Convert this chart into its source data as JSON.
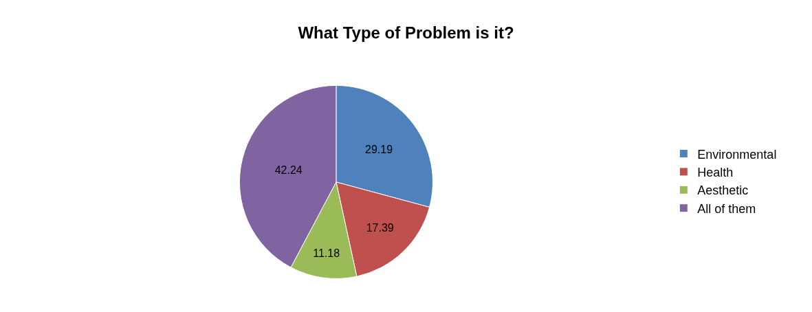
{
  "chart_data": {
    "type": "pie",
    "title": "What Type of Problem is it?",
    "categories": [
      "Environmental",
      "Health",
      "Aesthetic",
      "All of them"
    ],
    "values": [
      29.19,
      17.39,
      11.18,
      42.24
    ],
    "colors": [
      "#4f81bd",
      "#c0504d",
      "#9bbb59",
      "#8064a2"
    ],
    "data_labels": true,
    "legend": "right"
  }
}
